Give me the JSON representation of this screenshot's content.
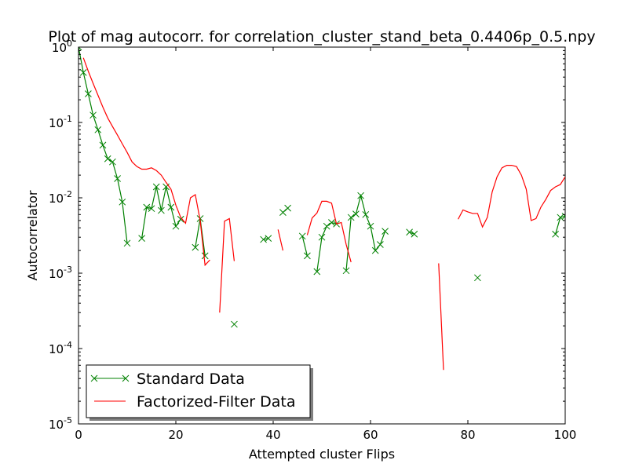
{
  "chart_data": {
    "type": "line",
    "title": "Plot of mag autocorr. for correlation_cluster_stand_beta_0.4406p_0.5.npy",
    "xlabel": "Attempted cluster Flips",
    "ylabel": "Autocorrelator",
    "xlim": [
      0,
      100
    ],
    "ylim": [
      1e-05,
      1
    ],
    "yscale": "log",
    "x_ticks": [
      0,
      20,
      40,
      60,
      80,
      100
    ],
    "x_tick_labels": [
      "0",
      "20",
      "40",
      "60",
      "80",
      "100"
    ],
    "y_ticks": [
      1,
      0.1,
      0.01,
      0.001,
      0.0001,
      1e-05
    ],
    "y_tick_labels": [
      {
        "base": "10",
        "exp": "0"
      },
      {
        "base": "10",
        "exp": "-1"
      },
      {
        "base": "10",
        "exp": "-2"
      },
      {
        "base": "10",
        "exp": "-3"
      },
      {
        "base": "10",
        "exp": "-4"
      },
      {
        "base": "10",
        "exp": "-5"
      }
    ],
    "grid": false,
    "legend_position": "bottom-left",
    "series": [
      {
        "name": "Standard Data",
        "color": "#008000",
        "marker": "x",
        "segments": [
          [
            [
              0,
              1.0
            ],
            [
              1,
              0.46
            ],
            [
              2,
              0.24
            ],
            [
              3,
              0.125
            ],
            [
              4,
              0.08
            ],
            [
              5,
              0.05
            ],
            [
              6,
              0.033
            ],
            [
              7,
              0.03
            ],
            [
              8,
              0.018
            ],
            [
              9,
              0.0088
            ],
            [
              10,
              0.0025
            ]
          ],
          [
            [
              13,
              0.0029
            ],
            [
              14,
              0.0075
            ],
            [
              15,
              0.0072
            ],
            [
              16,
              0.014
            ],
            [
              17,
              0.0068
            ],
            [
              18,
              0.014
            ],
            [
              19,
              0.0075
            ],
            [
              20,
              0.0042
            ],
            [
              21,
              0.0052
            ]
          ],
          [
            [
              24,
              0.0022
            ],
            [
              25,
              0.0053
            ],
            [
              26,
              0.0017
            ]
          ],
          [
            [
              32,
              0.00021
            ]
          ],
          [
            [
              38,
              0.0028
            ],
            [
              39,
              0.0029
            ]
          ],
          [
            [
              42,
              0.0064
            ],
            [
              43,
              0.0073
            ]
          ],
          [
            [
              46,
              0.0031
            ],
            [
              47,
              0.0017
            ]
          ],
          [
            [
              49,
              0.00105
            ],
            [
              50,
              0.003
            ],
            [
              51,
              0.0042
            ],
            [
              52,
              0.0047
            ],
            [
              53,
              0.0045
            ]
          ],
          [
            [
              55,
              0.00108
            ],
            [
              56,
              0.0055
            ],
            [
              57,
              0.0061
            ],
            [
              58,
              0.0107
            ],
            [
              59,
              0.006
            ],
            [
              60,
              0.0042
            ],
            [
              61,
              0.002
            ],
            [
              62,
              0.0024
            ],
            [
              63,
              0.0036
            ]
          ],
          [
            [
              68,
              0.0035
            ],
            [
              69,
              0.0033
            ]
          ],
          [
            [
              82,
              0.00087
            ]
          ],
          [
            [
              98,
              0.0033
            ],
            [
              99,
              0.0055
            ],
            [
              100,
              0.0057
            ]
          ]
        ]
      },
      {
        "name": "Factorized-Filter Data",
        "color": "#ff0000",
        "marker": "",
        "segments": [
          [
            [
              1,
              0.72
            ],
            [
              2,
              0.48
            ],
            [
              3,
              0.33
            ],
            [
              4,
              0.23
            ],
            [
              5,
              0.16
            ],
            [
              6,
              0.115
            ],
            [
              7,
              0.088
            ],
            [
              8,
              0.068
            ],
            [
              9,
              0.052
            ],
            [
              10,
              0.04
            ],
            [
              11,
              0.03
            ],
            [
              12,
              0.026
            ],
            [
              13,
              0.024
            ],
            [
              14,
              0.024
            ],
            [
              15,
              0.025
            ],
            [
              16,
              0.023
            ],
            [
              17,
              0.02
            ],
            [
              18,
              0.016
            ],
            [
              19,
              0.013
            ],
            [
              20,
              0.008
            ],
            [
              21,
              0.0055
            ],
            [
              22,
              0.0046
            ],
            [
              23,
              0.01
            ],
            [
              24,
              0.011
            ],
            [
              25,
              0.005
            ],
            [
              26,
              0.00128
            ],
            [
              27,
              0.0015
            ]
          ],
          [
            [
              29,
              0.0003
            ],
            [
              30,
              0.0049
            ],
            [
              31,
              0.0053
            ],
            [
              32,
              0.00145
            ]
          ],
          [
            [
              41,
              0.0038
            ],
            [
              42,
              0.002
            ]
          ],
          [
            [
              47,
              0.0032
            ],
            [
              48,
              0.0054
            ],
            [
              49,
              0.0063
            ],
            [
              50,
              0.009
            ],
            [
              51,
              0.009
            ],
            [
              52,
              0.0085
            ],
            [
              53,
              0.0045
            ],
            [
              54,
              0.0047
            ],
            [
              55,
              0.0024
            ],
            [
              56,
              0.0014
            ]
          ],
          [
            [
              74,
              0.00135
            ],
            [
              75,
              5.2e-05
            ]
          ],
          [
            [
              78,
              0.0052
            ],
            [
              79,
              0.0069
            ],
            [
              80,
              0.0065
            ],
            [
              81,
              0.0062
            ],
            [
              82,
              0.0062
            ],
            [
              83,
              0.0041
            ],
            [
              84,
              0.0055
            ],
            [
              85,
              0.012
            ],
            [
              86,
              0.019
            ],
            [
              87,
              0.025
            ],
            [
              88,
              0.027
            ],
            [
              89,
              0.027
            ],
            [
              90,
              0.026
            ],
            [
              91,
              0.02
            ],
            [
              92,
              0.013
            ],
            [
              93,
              0.005
            ],
            [
              94,
              0.0053
            ],
            [
              95,
              0.0075
            ],
            [
              96,
              0.0095
            ],
            [
              97,
              0.0125
            ],
            [
              98,
              0.014
            ],
            [
              99,
              0.015
            ],
            [
              100,
              0.019
            ]
          ]
        ]
      }
    ]
  }
}
